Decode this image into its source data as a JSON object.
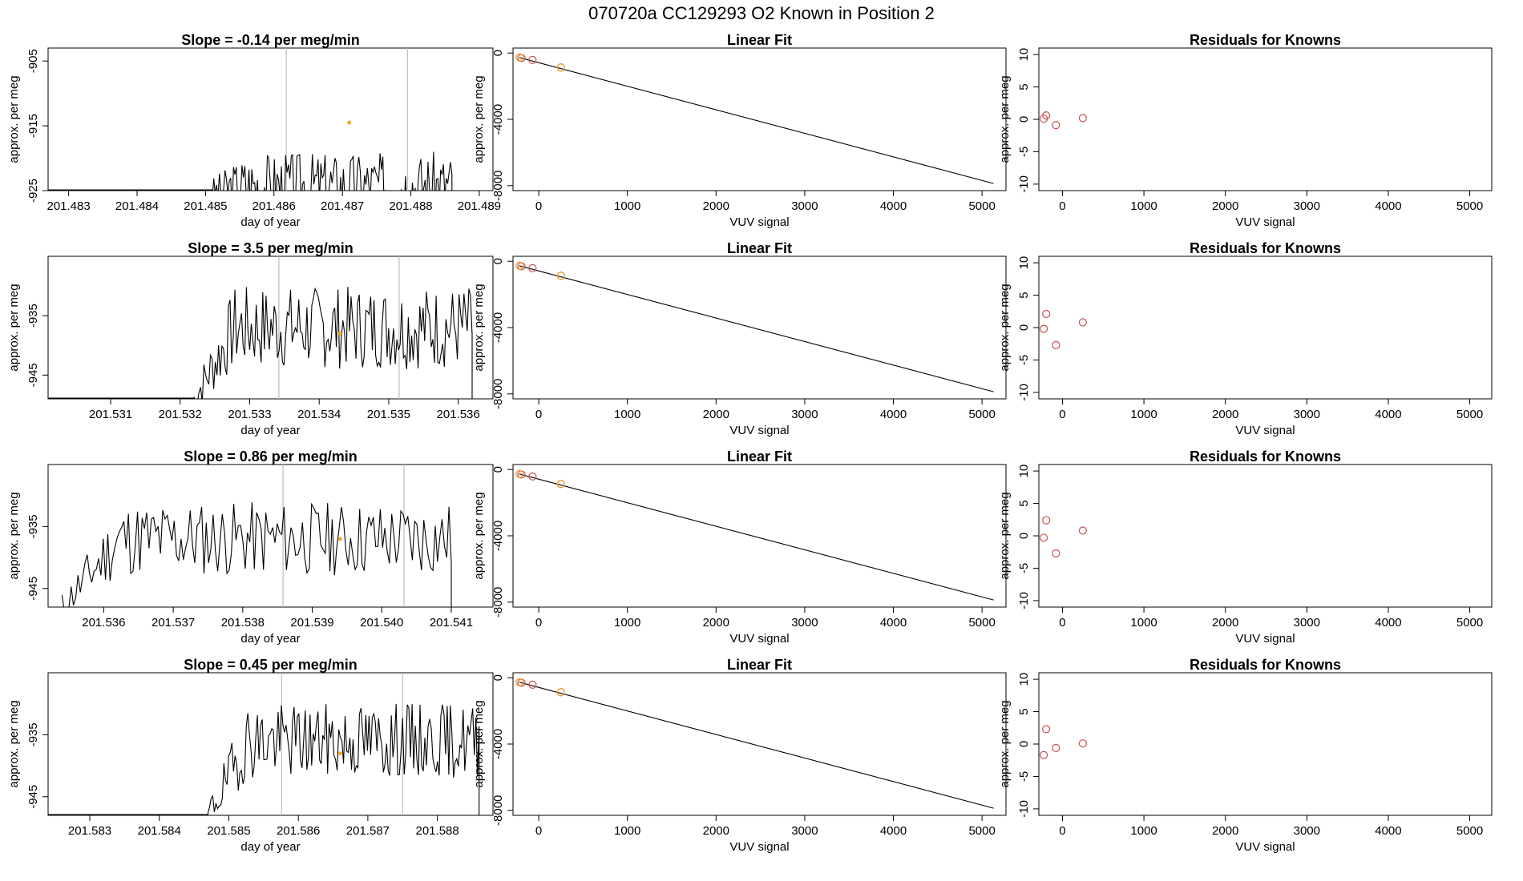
{
  "figure_title": "070720a      CC129293   O2 Known in Position  2",
  "colors": {
    "line": "#000000",
    "vline": "#bdbdbd",
    "known": "#cd4f4f",
    "orange": "#f5a623"
  },
  "chart_data": [
    {
      "type": "line",
      "row": 0,
      "title": "Slope =  -0.14  per meg/min",
      "xlabel": "day of year",
      "ylabel": "approx. per meg",
      "xlim": [
        201.4827,
        201.4892
      ],
      "ylim": [
        -925,
        -903
      ],
      "xticks": [
        201.483,
        201.484,
        201.485,
        201.486,
        201.487,
        201.488,
        201.489
      ],
      "yticks": [
        -925,
        -915,
        -905
      ],
      "vlines": [
        201.48618,
        201.48795
      ],
      "start": 201.4851,
      "end": 201.4886,
      "base": -924,
      "amp": 5,
      "seed": 3,
      "marker": {
        "x": 201.4871,
        "y": -914.5
      }
    },
    {
      "type": "line",
      "row": 1,
      "title": "Slope =  3.5  per meg/min",
      "xlabel": "day of year",
      "ylabel": "approx. per meg",
      "xlim": [
        201.5301,
        201.5365
      ],
      "ylim": [
        -949,
        -925
      ],
      "xticks": [
        201.531,
        201.532,
        201.533,
        201.534,
        201.535,
        201.536
      ],
      "yticks": [
        -945,
        -935
      ],
      "vlines": [
        201.53342,
        201.53515
      ],
      "start": 201.5322,
      "end": 201.5362,
      "base": -937,
      "amp": 7,
      "seed": 7,
      "marker": {
        "x": 201.5343,
        "y": -938
      }
    },
    {
      "type": "line",
      "row": 2,
      "title": "Slope =  0.86  per meg/min",
      "xlabel": "day of year",
      "ylabel": "approx. per meg",
      "xlim": [
        201.5352,
        201.5416
      ],
      "ylim": [
        -948,
        -925
      ],
      "xticks": [
        201.536,
        201.537,
        201.538,
        201.539,
        201.54,
        201.541
      ],
      "yticks": [
        -945,
        -935
      ],
      "vlines": [
        201.53858,
        201.54032
      ],
      "start": 201.5354,
      "end": 201.541,
      "base": -937,
      "amp": 6,
      "seed": 11,
      "marker": {
        "x": 201.5394,
        "y": -937
      }
    },
    {
      "type": "line",
      "row": 3,
      "title": "Slope =  0.45  per meg/min",
      "xlabel": "day of year",
      "ylabel": "approx. per meg",
      "xlim": [
        201.5824,
        201.5888
      ],
      "ylim": [
        -948,
        -925
      ],
      "xticks": [
        201.583,
        201.584,
        201.585,
        201.586,
        201.587,
        201.588
      ],
      "yticks": [
        -945,
        -935
      ],
      "vlines": [
        201.58576,
        201.5875
      ],
      "start": 201.5847,
      "end": 201.5886,
      "base": -936,
      "amp": 6,
      "seed": 19,
      "marker": {
        "x": 201.5866,
        "y": -938
      }
    },
    {
      "type": "scatter",
      "row": 0,
      "title": "Linear Fit",
      "xlabel": "VUV signal",
      "ylabel": "approx. per meg",
      "xlim": [
        -290,
        5270
      ],
      "ylim": [
        -8300,
        300
      ],
      "xticks": [
        0,
        1000,
        2000,
        3000,
        4000,
        5000
      ],
      "yticks": [
        -8000,
        -4000,
        0
      ],
      "fit": {
        "x": [
          -220,
          5130
        ],
        "y": [
          -270,
          -7870
        ]
      },
      "points": [
        [
          -215,
          -270
        ],
        [
          -195,
          -300
        ],
        [
          -70,
          -420
        ],
        [
          250,
          -870
        ]
      ],
      "orange": [
        [
          -215,
          -270
        ],
        [
          250,
          -880
        ]
      ]
    },
    {
      "type": "scatter",
      "row": 1,
      "title": "Linear Fit",
      "xlabel": "VUV signal",
      "ylabel": "approx. per meg",
      "xlim": [
        -290,
        5270
      ],
      "ylim": [
        -8300,
        300
      ],
      "xticks": [
        0,
        1000,
        2000,
        3000,
        4000,
        5000
      ],
      "yticks": [
        -8000,
        -4000,
        0
      ],
      "fit": {
        "x": [
          -220,
          5130
        ],
        "y": [
          -270,
          -7870
        ]
      },
      "points": [
        [
          -215,
          -270
        ],
        [
          -195,
          -300
        ],
        [
          -70,
          -420
        ],
        [
          250,
          -870
        ]
      ],
      "orange": [
        [
          -215,
          -270
        ],
        [
          250,
          -880
        ]
      ]
    },
    {
      "type": "scatter",
      "row": 2,
      "title": "Linear Fit",
      "xlabel": "VUV signal",
      "ylabel": "approx. per meg",
      "xlim": [
        -290,
        5270
      ],
      "ylim": [
        -8300,
        300
      ],
      "xticks": [
        0,
        1000,
        2000,
        3000,
        4000,
        5000
      ],
      "yticks": [
        -8000,
        -4000,
        0
      ],
      "fit": {
        "x": [
          -220,
          5130
        ],
        "y": [
          -270,
          -7870
        ]
      },
      "points": [
        [
          -215,
          -270
        ],
        [
          -195,
          -300
        ],
        [
          -70,
          -420
        ],
        [
          250,
          -870
        ]
      ],
      "orange": [
        [
          -215,
          -270
        ],
        [
          250,
          -880
        ]
      ]
    },
    {
      "type": "scatter",
      "row": 3,
      "title": "Linear Fit",
      "xlabel": "VUV signal",
      "ylabel": "approx. per meg",
      "xlim": [
        -290,
        5270
      ],
      "ylim": [
        -8300,
        300
      ],
      "xticks": [
        0,
        1000,
        2000,
        3000,
        4000,
        5000
      ],
      "yticks": [
        -8000,
        -4000,
        0
      ],
      "fit": {
        "x": [
          -220,
          5130
        ],
        "y": [
          -270,
          -7870
        ]
      },
      "points": [
        [
          -215,
          -270
        ],
        [
          -195,
          -300
        ],
        [
          -70,
          -420
        ],
        [
          250,
          -870
        ]
      ],
      "orange": [
        [
          -215,
          -270
        ],
        [
          250,
          -880
        ]
      ]
    },
    {
      "type": "scatter",
      "row": 0,
      "title": "Residuals for Knowns",
      "xlabel": "VUV signal",
      "ylabel": "approx. per meg",
      "xlim": [
        -290,
        5270
      ],
      "ylim": [
        -11,
        11
      ],
      "xticks": [
        0,
        1000,
        2000,
        3000,
        4000,
        5000
      ],
      "yticks": [
        -10,
        -5,
        0,
        5,
        10
      ],
      "points": [
        [
          -230,
          0.1
        ],
        [
          -200,
          0.6
        ],
        [
          -80,
          -0.9
        ],
        [
          250,
          0.2
        ]
      ]
    },
    {
      "type": "scatter",
      "row": 1,
      "title": "Residuals for Knowns",
      "xlabel": "VUV signal",
      "ylabel": "approx. per meg",
      "xlim": [
        -290,
        5270
      ],
      "ylim": [
        -11,
        11
      ],
      "xticks": [
        0,
        1000,
        2000,
        3000,
        4000,
        5000
      ],
      "yticks": [
        -10,
        -5,
        0,
        5,
        10
      ],
      "points": [
        [
          -230,
          -0.2
        ],
        [
          -200,
          2.1
        ],
        [
          -80,
          -2.7
        ],
        [
          250,
          0.8
        ]
      ]
    },
    {
      "type": "scatter",
      "row": 2,
      "title": "Residuals for Knowns",
      "xlabel": "VUV signal",
      "ylabel": "approx. per meg",
      "xlim": [
        -290,
        5270
      ],
      "ylim": [
        -11,
        11
      ],
      "xticks": [
        0,
        1000,
        2000,
        3000,
        4000,
        5000
      ],
      "yticks": [
        -10,
        -5,
        0,
        5,
        10
      ],
      "points": [
        [
          -230,
          -0.3
        ],
        [
          -200,
          2.4
        ],
        [
          -80,
          -2.7
        ],
        [
          250,
          0.8
        ]
      ]
    },
    {
      "type": "scatter",
      "row": 3,
      "title": "Residuals for Knowns",
      "xlabel": "VUV signal",
      "ylabel": "approx. per meg",
      "xlim": [
        -290,
        5270
      ],
      "ylim": [
        -11,
        11
      ],
      "xticks": [
        0,
        1000,
        2000,
        3000,
        4000,
        5000
      ],
      "yticks": [
        -10,
        -5,
        0,
        5,
        10
      ],
      "points": [
        [
          -230,
          -1.7
        ],
        [
          -200,
          2.3
        ],
        [
          -80,
          -0.6
        ],
        [
          250,
          0.1
        ]
      ]
    }
  ]
}
